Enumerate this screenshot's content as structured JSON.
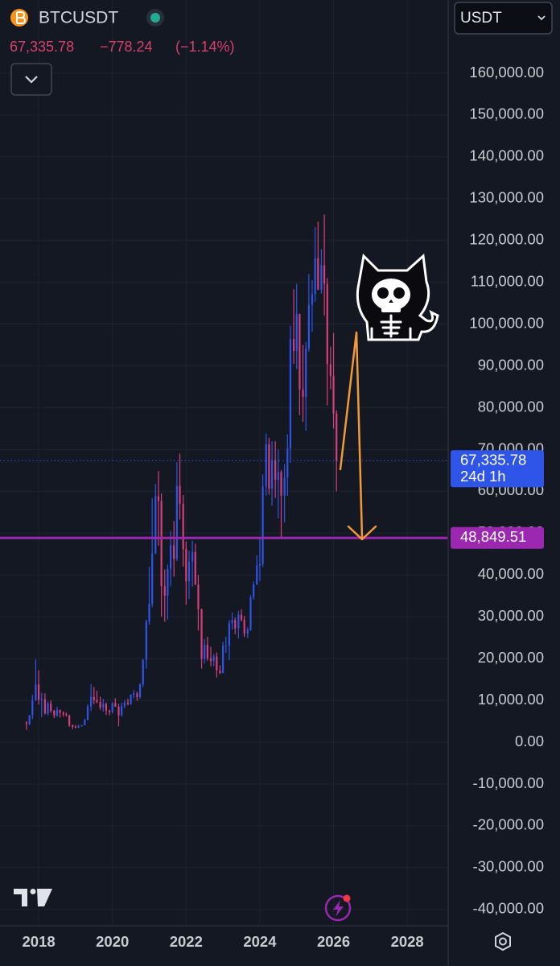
{
  "chart_data": {
    "type": "candlestick",
    "symbol": "BTCUSDT",
    "quote_currency": "USDT",
    "last_price": "67,335.78",
    "change": "−778.24",
    "change_percent": "(−1.14%)",
    "up_color": "#2f55e8",
    "down_color": "#d6407a",
    "grid": true,
    "xlim": [
      2016.95,
      2029.11
    ],
    "xticks": [
      2018,
      2020,
      2022,
      2024,
      2026,
      2028
    ],
    "ylim": [
      -43900,
      177500
    ],
    "yticks": [
      {
        "value": -40000,
        "label": "-40,000.00"
      },
      {
        "value": -30000,
        "label": "-30,000.00"
      },
      {
        "value": -20000,
        "label": "-20,000.00"
      },
      {
        "value": -10000,
        "label": "-10,000.00"
      },
      {
        "value": 0,
        "label": "0.00"
      },
      {
        "value": 10000,
        "label": "10,000.00"
      },
      {
        "value": 20000,
        "label": "20,000.00"
      },
      {
        "value": 30000,
        "label": "30,000.00"
      },
      {
        "value": 40000,
        "label": "40,000.00"
      },
      {
        "value": 50000,
        "label": "50,000.00"
      },
      {
        "value": 60000,
        "label": "60,000.00"
      },
      {
        "value": 70000,
        "label": "70,000.00"
      },
      {
        "value": 80000,
        "label": "80,000.00"
      },
      {
        "value": 90000,
        "label": "90,000.00"
      },
      {
        "value": 100000,
        "label": "100,000.00"
      },
      {
        "value": 110000,
        "label": "110,000.00"
      },
      {
        "value": 120000,
        "label": "120,000.00"
      },
      {
        "value": 130000,
        "label": "130,000.00"
      },
      {
        "value": 140000,
        "label": "140,000.00"
      },
      {
        "value": 150000,
        "label": "150,000.00"
      },
      {
        "value": 160000,
        "label": "160,000.00"
      }
    ],
    "price_lines": [
      {
        "value": 67335.78,
        "label": "67,335.78",
        "sublabel": "24d 1h",
        "color": "#2f55e8",
        "style": "dotted"
      },
      {
        "value": 48849.51,
        "label": "48,849.51",
        "color": "#9c27b0",
        "style": "solid"
      }
    ],
    "x": [
      2017.67,
      2017.75,
      2017.83,
      2017.92,
      2018.0,
      2018.08,
      2018.17,
      2018.25,
      2018.33,
      2018.42,
      2018.5,
      2018.58,
      2018.67,
      2018.75,
      2018.83,
      2018.92,
      2019.0,
      2019.08,
      2019.17,
      2019.25,
      2019.33,
      2019.42,
      2019.5,
      2019.58,
      2019.67,
      2019.75,
      2019.83,
      2019.92,
      2020.0,
      2020.08,
      2020.17,
      2020.25,
      2020.33,
      2020.42,
      2020.5,
      2020.58,
      2020.67,
      2020.75,
      2020.83,
      2020.92,
      2021.0,
      2021.08,
      2021.17,
      2021.25,
      2021.33,
      2021.42,
      2021.5,
      2021.58,
      2021.67,
      2021.75,
      2021.83,
      2021.92,
      2022.0,
      2022.08,
      2022.17,
      2022.25,
      2022.33,
      2022.42,
      2022.5,
      2022.58,
      2022.67,
      2022.75,
      2022.83,
      2022.92,
      2023.0,
      2023.08,
      2023.17,
      2023.25,
      2023.33,
      2023.42,
      2023.5,
      2023.58,
      2023.67,
      2023.75,
      2023.83,
      2023.92,
      2024.0,
      2024.08,
      2024.17,
      2024.25,
      2024.33,
      2024.42,
      2024.5,
      2024.58,
      2024.67,
      2024.75,
      2024.83,
      2024.92,
      2025.0,
      2025.08,
      2025.17,
      2025.25,
      2025.33,
      2025.42,
      2025.5,
      2025.58,
      2025.67,
      2025.75,
      2025.83,
      2025.92,
      2026.0,
      2026.08
    ],
    "open": [
      4700,
      4340,
      6450,
      9950,
      13800,
      10200,
      10300,
      6900,
      9240,
      7500,
      6390,
      7730,
      7030,
      6630,
      6370,
      4040,
      3690,
      3440,
      3820,
      4100,
      5300,
      8550,
      10800,
      10080,
      9600,
      8300,
      9150,
      7550,
      7200,
      9350,
      8520,
      6410,
      8620,
      9450,
      9140,
      11350,
      11650,
      10780,
      13800,
      19700,
      28900,
      33100,
      45150,
      58800,
      57700,
      37300,
      35050,
      41460,
      47100,
      43800,
      61300,
      57000,
      46200,
      38500,
      43200,
      45500,
      37650,
      31800,
      19950,
      23300,
      20050,
      19420,
      20490,
      17160,
      16540,
      23120,
      23130,
      28460,
      29230,
      27210,
      30470,
      29230,
      25940,
      26960,
      34640,
      37720,
      42280,
      42580,
      61130,
      71280,
      60670,
      67500,
      62770,
      64620,
      58970,
      63330,
      70220,
      96400,
      93580,
      102400,
      84350,
      82550,
      94200,
      104600,
      107150,
      115750,
      108250,
      114050,
      109600,
      90400,
      87600,
      78600
    ],
    "high": [
      5000,
      6450,
      11300,
      19800,
      17200,
      11800,
      11700,
      9750,
      10000,
      7760,
      8500,
      7760,
      7400,
      7100,
      6600,
      4240,
      4140,
      4200,
      4140,
      5600,
      9100,
      13900,
      13200,
      12300,
      10900,
      10400,
      9500,
      7750,
      9580,
      10500,
      9200,
      9480,
      10080,
      10400,
      11450,
      12480,
      12070,
      14100,
      19900,
      29300,
      41950,
      58350,
      61800,
      64850,
      59500,
      41300,
      42450,
      50500,
      52900,
      67000,
      69000,
      59100,
      48000,
      45800,
      48200,
      47450,
      40000,
      31950,
      24700,
      25200,
      22800,
      21100,
      21450,
      18400,
      23960,
      25250,
      29200,
      31000,
      29820,
      31400,
      31800,
      30200,
      27480,
      35200,
      38450,
      44700,
      48970,
      64000,
      73800,
      72800,
      71950,
      71980,
      70000,
      65100,
      66500,
      73620,
      99600,
      108350,
      109600,
      102500,
      95000,
      95750,
      111950,
      110500,
      123200,
      124500,
      117900,
      126200,
      111000,
      94600,
      97900,
      79400
    ],
    "low": [
      2950,
      4100,
      5500,
      9900,
      9000,
      6000,
      6600,
      6400,
      7000,
      5750,
      6070,
      5880,
      6100,
      6200,
      3650,
      3150,
      3350,
      3400,
      3700,
      4060,
      5300,
      7450,
      9100,
      9320,
      7700,
      7300,
      6500,
      6430,
      6870,
      8450,
      3800,
      6150,
      8100,
      8830,
      8960,
      10500,
      9880,
      10400,
      13200,
      17600,
      28100,
      32300,
      45000,
      47000,
      30000,
      28800,
      29300,
      37300,
      39600,
      43300,
      53250,
      42000,
      32900,
      34300,
      37200,
      37600,
      26700,
      17600,
      18800,
      19500,
      18150,
      18200,
      15480,
      16250,
      16500,
      21350,
      19550,
      26950,
      25800,
      24800,
      28850,
      25150,
      24900,
      26550,
      34100,
      37600,
      38550,
      41880,
      59000,
      59200,
      56550,
      58400,
      53500,
      49000,
      52550,
      58900,
      66800,
      90500,
      89250,
      78200,
      76600,
      74500,
      93400,
      98200,
      105300,
      108100,
      107300,
      102000,
      80600,
      84400,
      75000,
      60000
    ],
    "close": [
      4340,
      6450,
      9950,
      13800,
      10200,
      10300,
      6900,
      9240,
      7500,
      6390,
      7730,
      7030,
      6630,
      6370,
      4040,
      3690,
      3440,
      3820,
      4100,
      5300,
      8550,
      10800,
      10080,
      9600,
      8300,
      9150,
      7550,
      7200,
      9350,
      8520,
      6410,
      8620,
      9450,
      9140,
      11350,
      11650,
      10780,
      13800,
      19700,
      28900,
      33100,
      45150,
      58800,
      57700,
      37300,
      35050,
      41460,
      47100,
      43800,
      61300,
      57000,
      46200,
      38500,
      43200,
      45500,
      37650,
      31800,
      19950,
      23300,
      20050,
      19420,
      20490,
      17160,
      16540,
      23120,
      23130,
      28460,
      29230,
      27210,
      30470,
      29230,
      25940,
      26960,
      34640,
      37720,
      42280,
      42580,
      61130,
      71280,
      60670,
      67500,
      62770,
      64620,
      58970,
      63330,
      70220,
      96400,
      93580,
      102400,
      84350,
      82550,
      94200,
      104600,
      107150,
      115750,
      108250,
      114050,
      109600,
      90400,
      87600,
      78600,
      67335.78
    ]
  }
}
